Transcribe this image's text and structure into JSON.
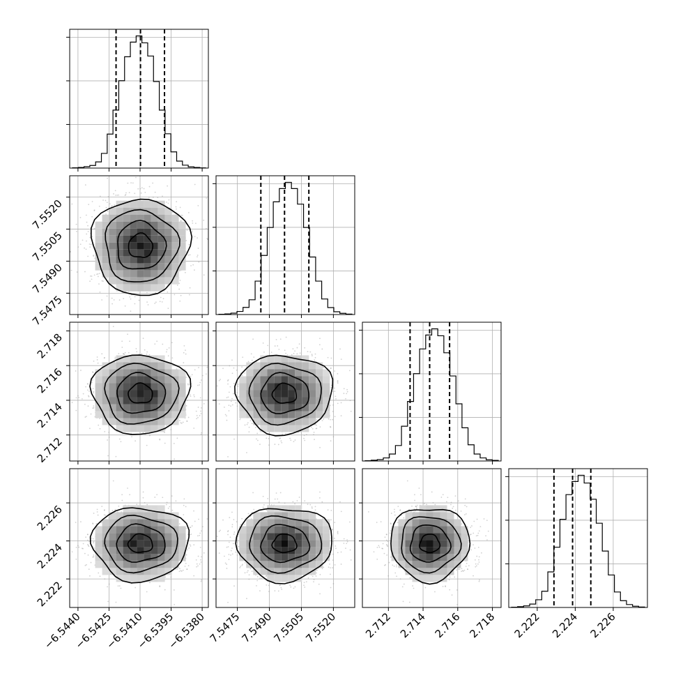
{
  "chart_data": {
    "type": "corner",
    "parameters": 4,
    "quantiles": [
      0.16,
      0.5,
      0.84
    ],
    "grid": true,
    "params": [
      {
        "range": [
          -6.5444,
          -6.5377
        ],
        "ticks": [
          -6.544,
          -6.5425,
          -6.541,
          -6.5395,
          -6.538
        ],
        "tick_labels": [
          "−6.5440",
          "−6.5425",
          "−6.5410",
          "−6.5395",
          "−6.5380"
        ],
        "quantile_values": [
          -6.54216,
          -6.54098,
          -6.53982
        ],
        "hist_counts": [
          2,
          4,
          9,
          17,
          40,
          95,
          220,
          375,
          565,
          720,
          815,
          855,
          810,
          725,
          560,
          375,
          222,
          105,
          45,
          19,
          8,
          4,
          1
        ]
      },
      {
        "range": [
          7.5465,
          7.553
        ],
        "ticks": [
          7.5475,
          7.549,
          7.5505,
          7.552
        ],
        "tick_labels": [
          "7.5475",
          "7.5490",
          "7.5505",
          "7.5520"
        ],
        "quantile_values": [
          7.5486,
          7.54971,
          7.55085
        ],
        "hist_counts": [
          2,
          4,
          9,
          20,
          46,
          95,
          215,
          380,
          560,
          725,
          810,
          850,
          810,
          710,
          560,
          370,
          215,
          100,
          45,
          18,
          8,
          3
        ]
      },
      {
        "range": [
          2.7105,
          2.7185
        ],
        "ticks": [
          2.712,
          2.714,
          2.716,
          2.718
        ],
        "tick_labels": [
          "2.712",
          "2.714",
          "2.716",
          "2.718"
        ],
        "quantile_values": [
          2.71325,
          2.71438,
          2.71553
        ],
        "hist_counts": [
          2,
          5,
          9,
          20,
          45,
          100,
          225,
          385,
          565,
          725,
          815,
          855,
          810,
          700,
          550,
          370,
          215,
          105,
          45,
          20,
          8,
          4
        ]
      },
      {
        "range": [
          2.2205,
          2.2278
        ],
        "ticks": [
          2.222,
          2.224,
          2.226
        ],
        "tick_labels": [
          "2.222",
          "2.224",
          "2.226"
        ],
        "quantile_values": [
          2.22288,
          2.22386,
          2.22482
        ],
        "hist_counts": [
          2,
          5,
          10,
          22,
          50,
          105,
          230,
          390,
          570,
          730,
          815,
          855,
          805,
          700,
          545,
          365,
          210,
          100,
          44,
          19,
          8,
          3
        ]
      }
    ]
  }
}
